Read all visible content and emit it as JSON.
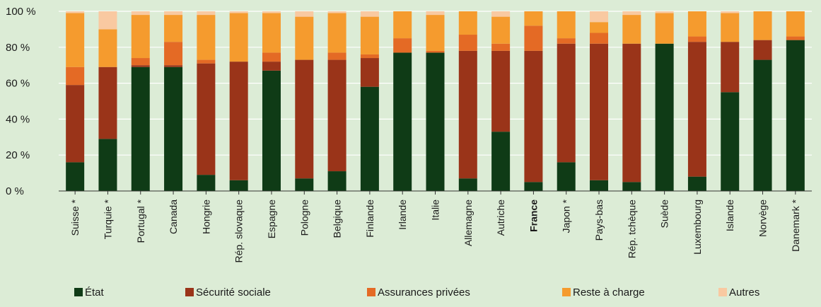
{
  "chart_data": {
    "type": "bar",
    "stacked": true,
    "percent": true,
    "ylim": [
      0,
      100
    ],
    "yticks": [
      0,
      20,
      40,
      60,
      80,
      100
    ],
    "ytick_labels": [
      "0 %",
      "20 %",
      "40 %",
      "60 %",
      "80 %",
      "100 %"
    ],
    "grid": true,
    "legend_position": "bottom",
    "categories": [
      "Suisse *",
      "Turquie *",
      "Portugal *",
      "Canada",
      "Hongrie",
      "Rép. slovaque",
      "Espagne",
      "Pologne",
      "Belgique",
      "Finlande",
      "Irlande",
      "Italie",
      "Allemagne",
      "Autriche",
      "France",
      "Japon *",
      "Pays-bas",
      "Rép. tchèque",
      "Suède",
      "Luxembourg",
      "Islande",
      "Norvège",
      "Danemark *"
    ],
    "highlight_category": "France",
    "series": [
      {
        "name": "État",
        "color": "#0f3b16",
        "values": [
          16,
          29,
          69,
          69,
          9,
          6,
          67,
          7,
          11,
          58,
          77,
          77,
          7,
          33,
          5,
          16,
          6,
          5,
          82,
          8,
          55,
          73,
          84
        ]
      },
      {
        "name": "Sécurité sociale",
        "color": "#9a3419",
        "values": [
          43,
          40,
          1,
          1,
          62,
          66,
          5,
          66,
          62,
          16,
          0,
          0,
          71,
          45,
          73,
          66,
          76,
          77,
          0,
          75,
          28,
          11,
          0
        ]
      },
      {
        "name": "Assurances privées",
        "color": "#e46a25",
        "values": [
          10,
          0,
          4,
          13,
          2,
          0,
          5,
          0,
          4,
          2,
          8,
          1,
          9,
          4,
          14,
          3,
          6,
          0,
          0,
          3,
          0,
          0,
          2
        ]
      },
      {
        "name": "Reste à charge",
        "color": "#f59b2e",
        "values": [
          30,
          21,
          24,
          15,
          25,
          27,
          22,
          24,
          22,
          21,
          15,
          20,
          13,
          15,
          8,
          15,
          6,
          16,
          17,
          14,
          16,
          16,
          14
        ]
      },
      {
        "name": "Autres",
        "color": "#f9c9a1",
        "values": [
          1,
          10,
          2,
          2,
          2,
          1,
          1,
          3,
          1,
          3,
          0,
          2,
          0,
          3,
          0,
          0,
          6,
          2,
          1,
          0,
          1,
          0,
          0
        ]
      }
    ]
  }
}
